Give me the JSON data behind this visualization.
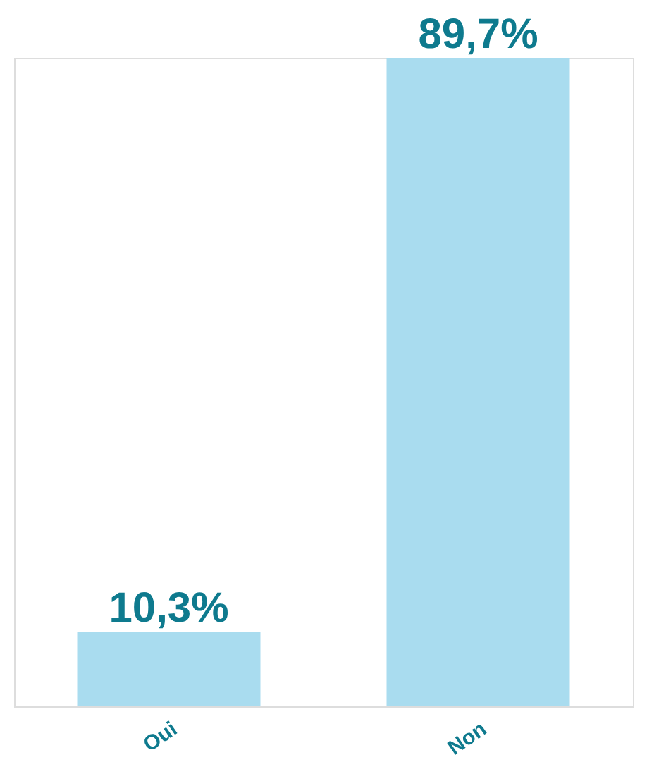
{
  "chart_data": {
    "type": "bar",
    "categories": [
      "Oui",
      "Non"
    ],
    "values": [
      10.3,
      89.7
    ],
    "value_labels": [
      "10,3%",
      "89,7%"
    ],
    "colors": [
      "#a9dcef",
      "#a9dcef"
    ]
  }
}
